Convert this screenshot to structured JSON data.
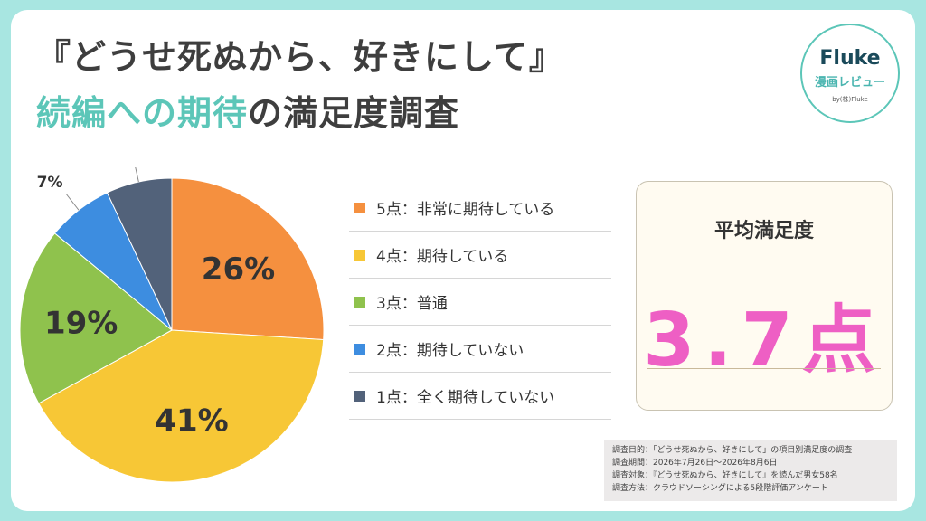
{
  "title": {
    "line1": "『どうせ死ぬから、好きにして』",
    "line2_accent": "続編への期待",
    "line2_rest": "の満足度調査"
  },
  "logo": {
    "name": "Fluke",
    "subtitle": "漫画レビュー",
    "byline": "by(株)Fluke"
  },
  "chart_data": {
    "type": "pie",
    "unit": "%",
    "slices": [
      {
        "label": "5点：非常に期待している",
        "value": 26,
        "color": "#f5903f"
      },
      {
        "label": "4点：期待している",
        "value": 41,
        "color": "#f7c736"
      },
      {
        "label": "3点：普通",
        "value": 19,
        "color": "#8fc24d"
      },
      {
        "label": "2点：期待していない",
        "value": 7,
        "color": "#3d8de0"
      },
      {
        "label": "1点：全く期待していない",
        "value": 7,
        "color": "#52627a"
      }
    ],
    "start": "12 o'clock",
    "direction": "clockwise",
    "legend_position": "right"
  },
  "average": {
    "label": "平均満足度",
    "value": "3.7点"
  },
  "notes": [
    "調査目的：「どうせ死ぬから、好きにして」の項目別満足度の調査",
    "調査期間：2026年7月26日～2026年8月6日",
    "調査対象：『どうせ死ぬから、好きにして』を読んだ男女58名",
    "調査方法：クラウドソーシングによる5段階評価アンケート"
  ]
}
